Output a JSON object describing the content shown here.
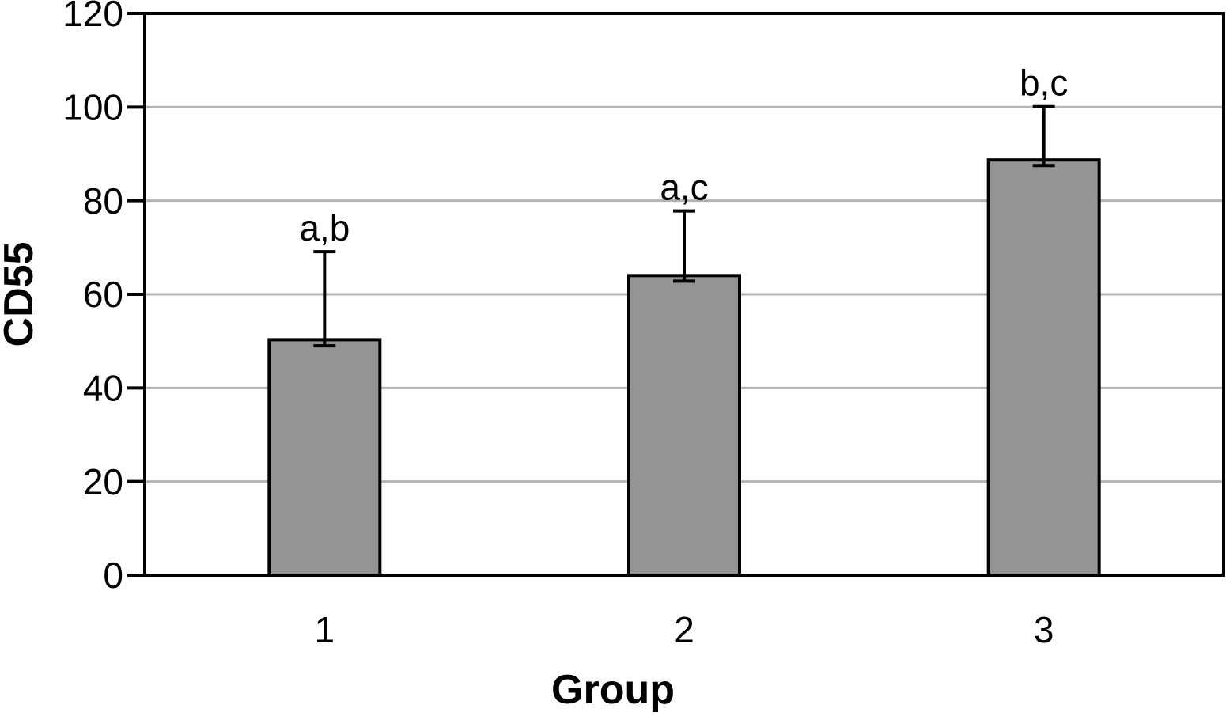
{
  "figure": {
    "background": "#ffffff"
  },
  "chart_data": {
    "type": "bar",
    "title": "",
    "xlabel": "Group",
    "ylabel": "CD55",
    "categories": [
      "1",
      "2",
      "3"
    ],
    "values": [
      50.3,
      64,
      88.7
    ],
    "error_low": [
      49,
      62.8,
      87.5
    ],
    "error_high": [
      69.1,
      77.8,
      100.1
    ],
    "annotations": [
      "a,b",
      "a,c",
      "b,c"
    ],
    "ylim": [
      0,
      120
    ],
    "yticks": [
      0,
      20,
      40,
      60,
      80,
      100,
      120
    ],
    "grid": "horizontal",
    "legend": "none",
    "bar_color": "#949494",
    "bar_border_color": "#000000",
    "error_bar_color": "#000000",
    "gridline_color": "#b3b3b3",
    "axis_color": "#000000",
    "text_color": "#000000"
  }
}
